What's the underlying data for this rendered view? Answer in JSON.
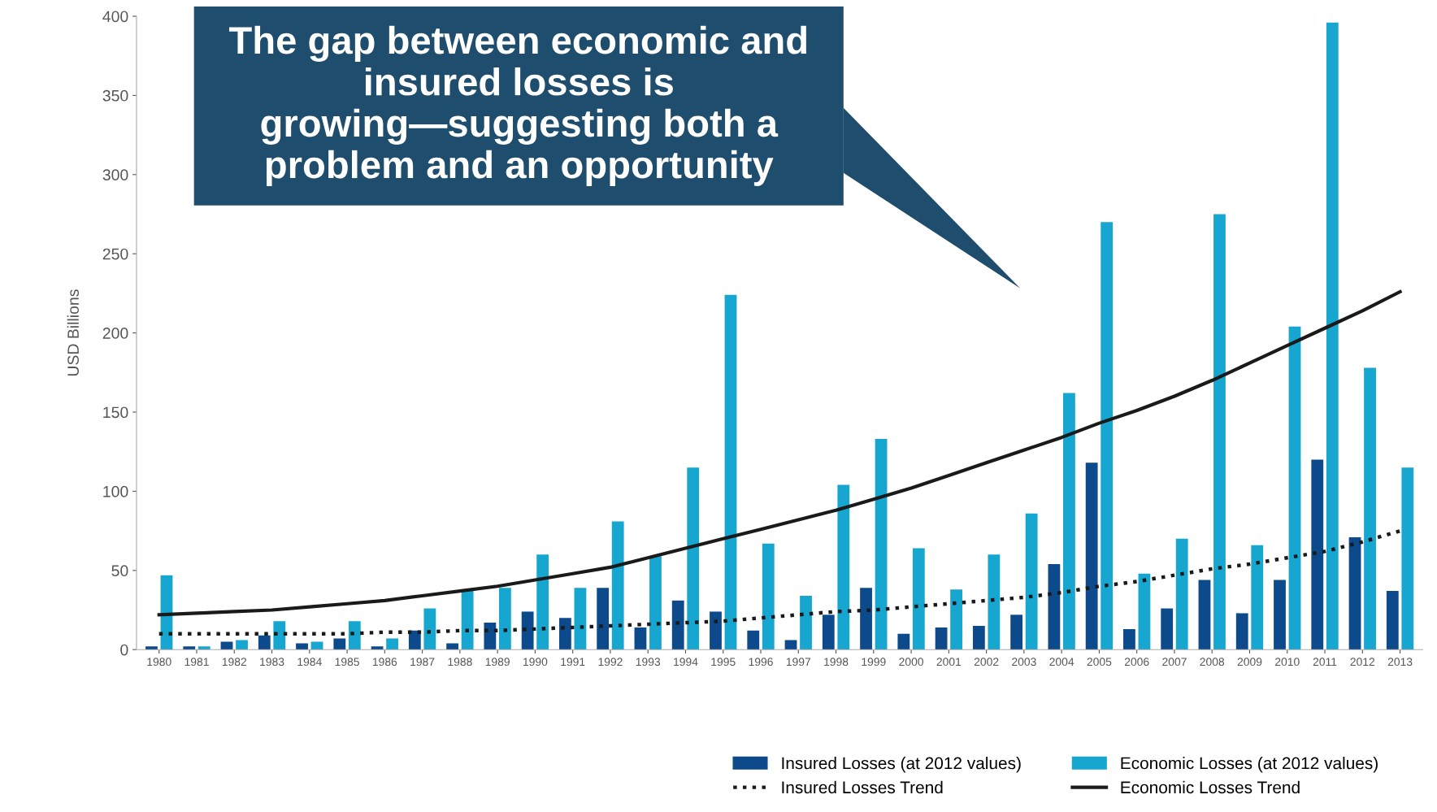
{
  "chart_data": {
    "type": "bar",
    "ylabel": "USD Billions",
    "categories": [
      "1980",
      "1981",
      "1982",
      "1983",
      "1984",
      "1985",
      "1986",
      "1987",
      "1988",
      "1989",
      "1990",
      "1991",
      "1992",
      "1993",
      "1994",
      "1995",
      "1996",
      "1997",
      "1998",
      "1999",
      "2000",
      "2001",
      "2002",
      "2003",
      "2004",
      "2005",
      "2006",
      "2007",
      "2008",
      "2009",
      "2010",
      "2011",
      "2012",
      "2013"
    ],
    "series": [
      {
        "name": "Insured Losses (at 2012 values)",
        "color": "#0d4a8c",
        "values": [
          2,
          2,
          5,
          9,
          4,
          7,
          2,
          12,
          4,
          17,
          24,
          20,
          39,
          14,
          31,
          24,
          12,
          6,
          22,
          39,
          10,
          14,
          15,
          22,
          54,
          118,
          13,
          26,
          44,
          23,
          44,
          120,
          71,
          37
        ]
      },
      {
        "name": "Economic Losses (at 2012 values)",
        "color": "#16a6d0",
        "values": [
          47,
          2,
          6,
          18,
          5,
          18,
          7,
          26,
          38,
          39,
          60,
          39,
          81,
          59,
          115,
          224,
          67,
          34,
          104,
          133,
          64,
          38,
          60,
          86,
          162,
          270,
          48,
          70,
          275,
          66,
          204,
          396,
          178,
          115
        ]
      },
      {
        "name": "Insured Losses Trend",
        "type": "line",
        "color": "#1a1a1a",
        "line_style": "dotted",
        "values": [
          10,
          10,
          10,
          10,
          10,
          10,
          11,
          11,
          12,
          12,
          13,
          14,
          15,
          16,
          17,
          18,
          20,
          22,
          24,
          25,
          27,
          29,
          31,
          33,
          36,
          40,
          43,
          47,
          51,
          54,
          58,
          62,
          68,
          75
        ]
      },
      {
        "name": "Economic Losses Trend",
        "type": "line",
        "color": "#1a1a1a",
        "line_style": "solid",
        "values": [
          22,
          23,
          24,
          25,
          27,
          29,
          31,
          34,
          37,
          40,
          44,
          48,
          52,
          58,
          64,
          70,
          76,
          82,
          88,
          95,
          102,
          110,
          118,
          126,
          134,
          143,
          151,
          160,
          170,
          181,
          192,
          203,
          214,
          226
        ]
      }
    ],
    "ylim": [
      0,
      400
    ],
    "yticks": [
      0,
      50,
      100,
      150,
      200,
      250,
      300,
      350,
      400
    ],
    "grid": false,
    "legend": "bottom right",
    "annotations": [
      "The gap between economic and insured losses is growing—suggesting both a problem and an opportunity"
    ]
  }
}
